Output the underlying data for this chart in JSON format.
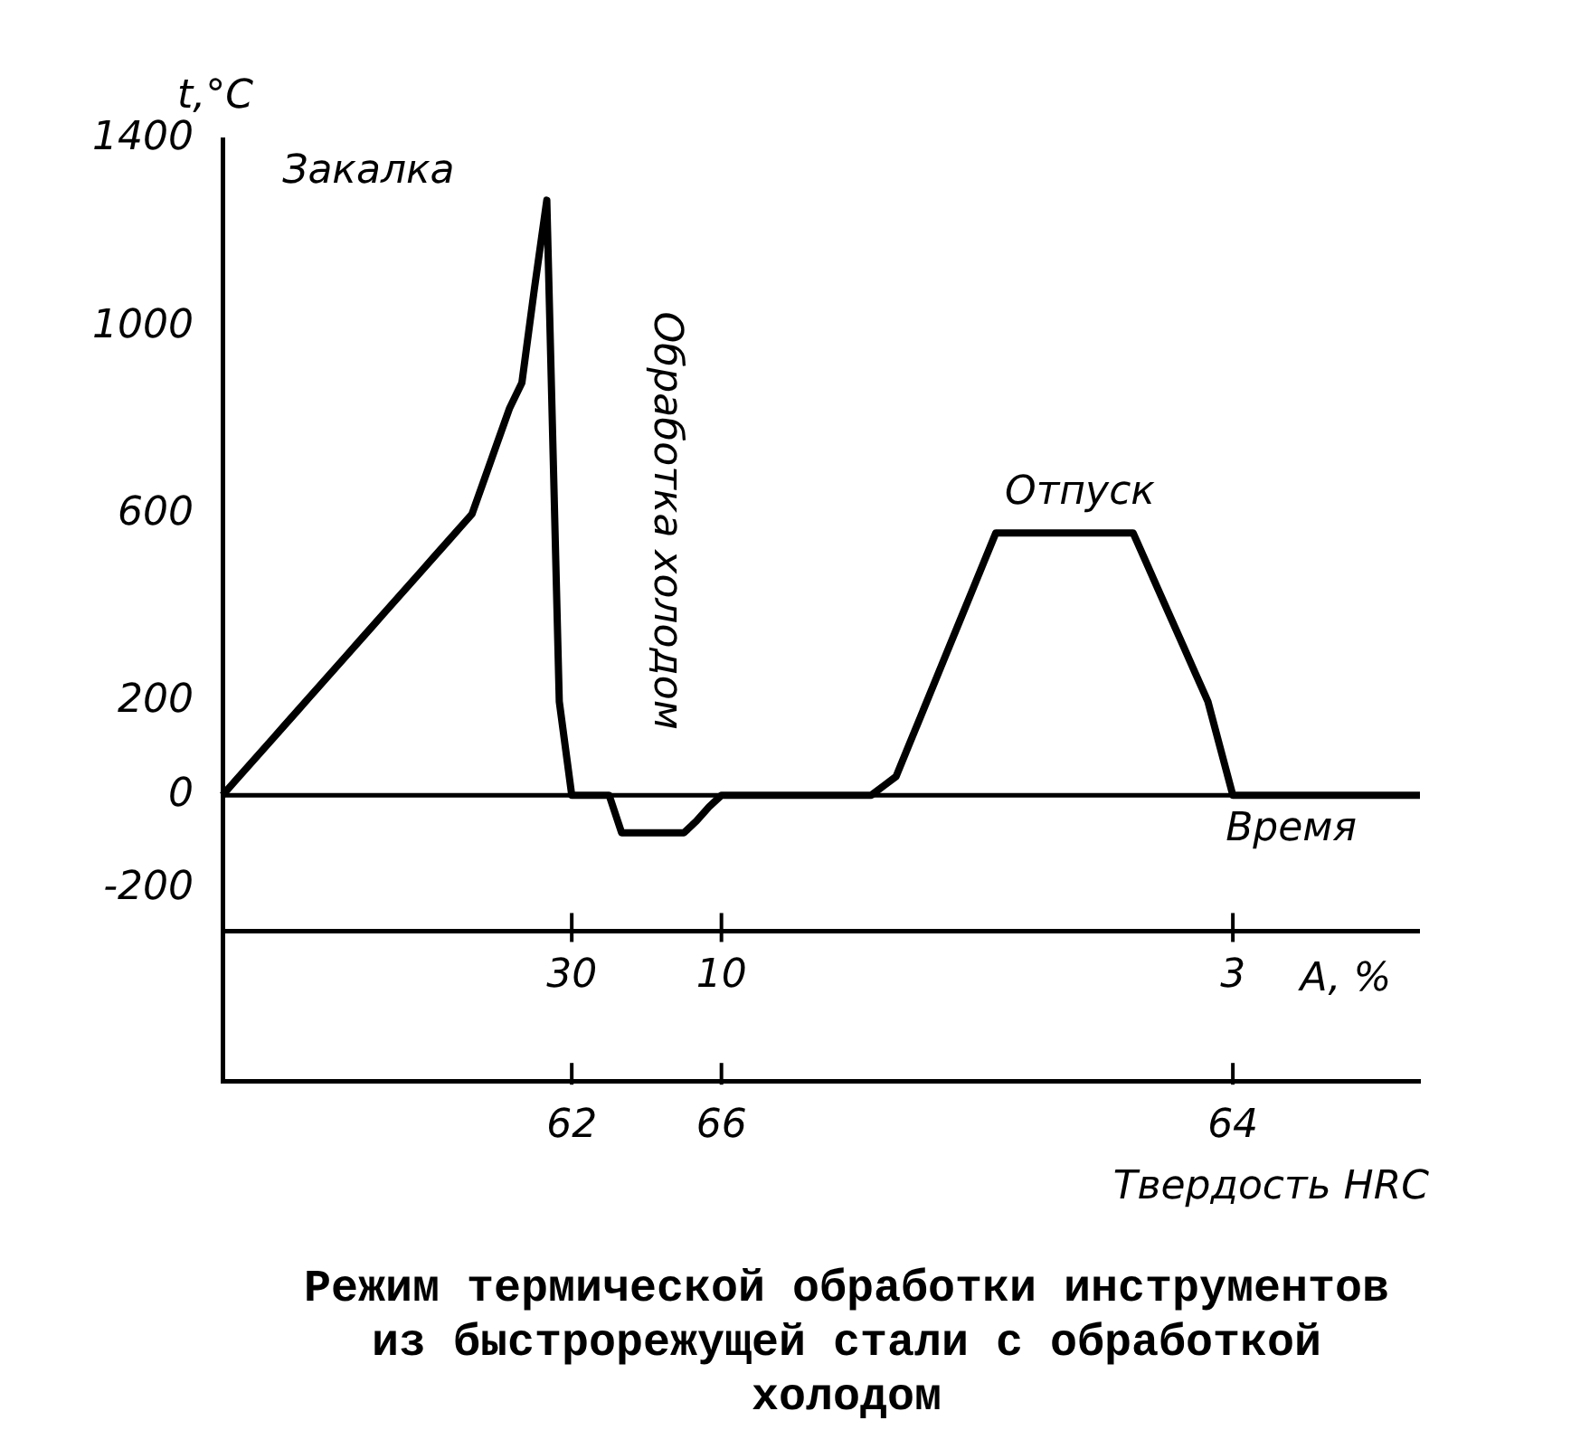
{
  "chart_data": {
    "type": "line",
    "title": "Режим термической обработки инструментов из быстрорежущей стали с обработкой холодом",
    "ylabel": "t,°C",
    "xlabel": "Твердость HRC",
    "categories": [
      null,
      null,
      null,
      null,
      null,
      null,
      null,
      null,
      null,
      null,
      null,
      null,
      null,
      null,
      null,
      null,
      null,
      null,
      null,
      null,
      null,
      null,
      null,
      null,
      null,
      null,
      null,
      null,
      "62",
      null,
      null,
      null,
      null,
      null,
      null,
      null,
      null,
      null,
      null,
      null,
      "66",
      null,
      null,
      null,
      null,
      null,
      null,
      null,
      null,
      null,
      null,
      null,
      null,
      null,
      null,
      null,
      null,
      null,
      null,
      null,
      null,
      null,
      null,
      null,
      null,
      null,
      null,
      null,
      null,
      null,
      null,
      null,
      null,
      null,
      null,
      null,
      null,
      null,
      null,
      null,
      null,
      "64",
      null,
      null,
      null,
      null,
      null,
      null,
      null,
      null,
      null,
      null,
      null,
      null,
      null,
      null,
      null
    ],
    "series": [
      {
        "color": "#000000",
        "values": [
          0,
          30,
          60,
          90,
          120,
          150,
          180,
          210,
          240,
          270,
          300,
          330,
          360,
          390,
          420,
          450,
          480,
          510,
          540,
          570,
          600,
          675,
          750,
          825,
          880,
          1080,
          1270,
          200,
          0,
          0,
          0,
          0,
          -80,
          -80,
          -80,
          -80,
          -80,
          -80,
          -55,
          -25,
          0,
          0,
          0,
          0,
          0,
          0,
          0,
          0,
          0,
          0,
          0,
          0,
          0,
          20,
          40,
          105,
          170,
          235,
          300,
          365,
          430,
          495,
          560,
          560,
          560,
          560,
          560,
          560,
          560,
          560,
          560,
          560,
          560,
          560,
          500,
          440,
          380,
          320,
          260,
          200,
          100,
          0,
          0,
          0,
          0,
          0,
          0,
          0,
          0,
          0,
          0,
          0,
          0,
          0,
          0,
          0,
          0
        ]
      }
    ],
    "ylim": [
      -610,
      1400
    ],
    "yticks": [
      -200,
      0,
      200,
      600,
      1000,
      1400
    ],
    "ref_lines": [
      {
        "axis": "y",
        "value": 0,
        "label": "Время"
      },
      {
        "axis": "y",
        "value": -290
      }
    ],
    "annotations": [
      "Закалка",
      "Обработка холодом",
      "Отпуск",
      "A, %",
      {
        "text": "30",
        "x": "62",
        "y": -290
      },
      {
        "text": "10",
        "x": "66",
        "y": -290
      },
      {
        "text": "3",
        "x": "64",
        "y": -290
      }
    ],
    "grid": false,
    "legend": false,
    "marker": "none",
    "line_style": "solid"
  }
}
